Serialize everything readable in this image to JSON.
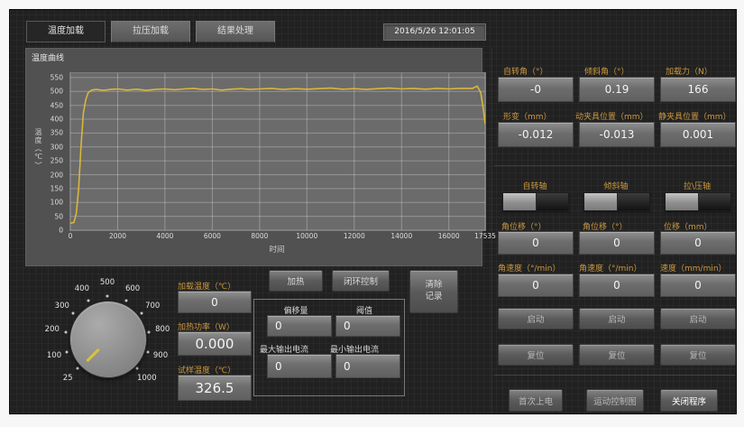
{
  "window": {
    "timestamp": "2016/5/26 12:01:05"
  },
  "tabs": [
    {
      "label": "温度加载",
      "active": true
    },
    {
      "label": "拉压加载",
      "active": false
    },
    {
      "label": "结果处理",
      "active": false
    }
  ],
  "chart_data": {
    "type": "line",
    "title": "温度曲线",
    "xlabel": "时间",
    "ylabel": "温度（℃）",
    "xlim": [
      0,
      17535
    ],
    "ylim": [
      0,
      566
    ],
    "xticks": [
      0,
      2000,
      4000,
      6000,
      8000,
      10000,
      12000,
      14000,
      16000,
      17535
    ],
    "yticks": [
      0,
      50,
      100,
      150,
      200,
      250,
      300,
      350,
      400,
      450,
      500,
      550
    ],
    "grid": true,
    "legend": "none",
    "series": [
      {
        "name": "温度",
        "color": "#d9b63b",
        "points": [
          [
            0,
            25
          ],
          [
            150,
            28
          ],
          [
            250,
            60
          ],
          [
            350,
            150
          ],
          [
            450,
            300
          ],
          [
            550,
            420
          ],
          [
            650,
            470
          ],
          [
            750,
            495
          ],
          [
            900,
            505
          ],
          [
            1100,
            507
          ],
          [
            1400,
            504
          ],
          [
            1700,
            507
          ],
          [
            2000,
            509
          ],
          [
            2400,
            505
          ],
          [
            2800,
            508
          ],
          [
            3200,
            504
          ],
          [
            3600,
            507
          ],
          [
            4000,
            509
          ],
          [
            4400,
            506
          ],
          [
            4800,
            509
          ],
          [
            5200,
            511
          ],
          [
            5600,
            507
          ],
          [
            6000,
            509
          ],
          [
            6400,
            505
          ],
          [
            6800,
            508
          ],
          [
            7200,
            510
          ],
          [
            7600,
            507
          ],
          [
            8000,
            509
          ],
          [
            8500,
            511
          ],
          [
            9000,
            507
          ],
          [
            9500,
            510
          ],
          [
            10000,
            508
          ],
          [
            10500,
            510
          ],
          [
            11000,
            512
          ],
          [
            11500,
            508
          ],
          [
            12000,
            510
          ],
          [
            12500,
            507
          ],
          [
            13000,
            510
          ],
          [
            13500,
            512
          ],
          [
            14000,
            509
          ],
          [
            14500,
            511
          ],
          [
            15000,
            508
          ],
          [
            15500,
            511
          ],
          [
            16000,
            509
          ],
          [
            16500,
            511
          ],
          [
            17000,
            511
          ],
          [
            17200,
            519
          ],
          [
            17350,
            495
          ],
          [
            17450,
            440
          ],
          [
            17535,
            383
          ]
        ]
      }
    ]
  },
  "heater": {
    "setpoint_label": "加载温度（℃）",
    "setpoint_value": "0",
    "power_label": "加热功率（W）",
    "power_value": "0.000",
    "sample_label": "试样温度（℃）",
    "sample_value": "326.5",
    "heat_button": "加热",
    "loop_button": "闭环控制",
    "clear_button": "清除\n记录",
    "pid": {
      "offset_label": "偏移量",
      "offset_value": "0",
      "threshold_label": "阈值",
      "threshold_value": "0",
      "imax_label": "最大输出电流",
      "imax_value": "0",
      "imin_label": "最小输出电流",
      "imin_value": "0"
    },
    "knob": {
      "scale": [
        25,
        100,
        200,
        300,
        400,
        500,
        600,
        700,
        800,
        900,
        1000
      ],
      "value": 0
    }
  },
  "meters": [
    {
      "label": "自转角（°）",
      "value": "-0"
    },
    {
      "label": "倾斜角（°）",
      "value": "0.19"
    },
    {
      "label": "加载力（N）",
      "value": "166"
    },
    {
      "label": "形变（mm）",
      "value": "-0.012"
    },
    {
      "label": "动夹具位置（mm）",
      "value": "-0.013"
    },
    {
      "label": "静夹具位置（mm）",
      "value": "0.001"
    }
  ],
  "axes": [
    {
      "title": "自转轴",
      "pos_label": "角位移（°）",
      "pos_value": "0",
      "vel_label": "角速度（°/min）",
      "vel_value": "0",
      "start": "启动",
      "reset": "复位"
    },
    {
      "title": "倾斜轴",
      "pos_label": "角位移（°）",
      "pos_value": "0",
      "vel_label": "角速度（°/min）",
      "vel_value": "0",
      "start": "启动",
      "reset": "复位"
    },
    {
      "title": "拉\\压轴",
      "pos_label": "位移（mm）",
      "pos_value": "0",
      "vel_label": "速度（mm/min）",
      "vel_value": "0",
      "start": "启动",
      "reset": "复位"
    }
  ],
  "footer": {
    "power_button": "首次上电",
    "motion_button": "运动控制图",
    "close_button": "关闭程序"
  },
  "colors": {
    "accent": "#c9973f",
    "curve": "#d9b63b",
    "background": "#212121",
    "plot_bg": "#6b6b6b"
  }
}
